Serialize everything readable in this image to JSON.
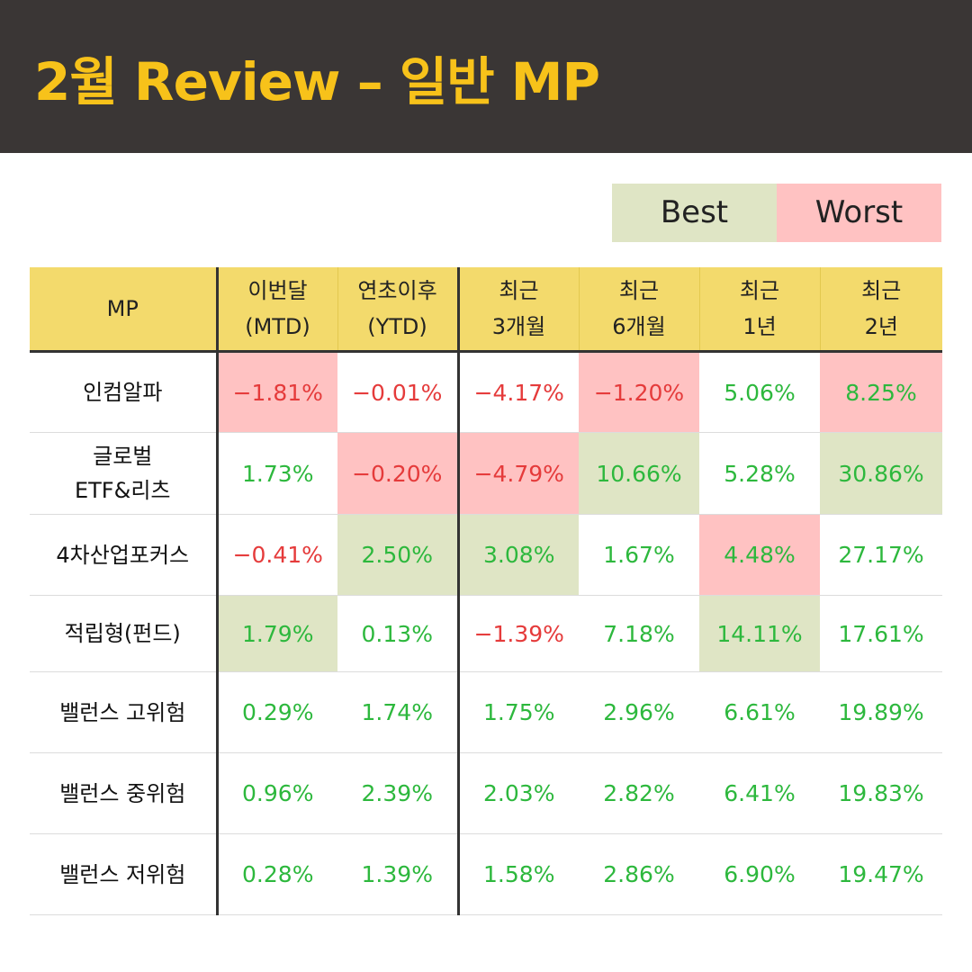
{
  "title": "2월 Review – 일반 MP",
  "legend": {
    "best": "Best",
    "worst": "Worst"
  },
  "colors": {
    "header_bg": "#3a3635",
    "title": "#f7c21a",
    "header_row": "#f3da6c",
    "best": "#dfe5c5",
    "worst": "#ffc2c2",
    "positive": "#2db83d",
    "negative": "#e53b3b"
  },
  "columns": [
    {
      "line1": "MP",
      "line2": ""
    },
    {
      "line1": "이번달",
      "line2": "(MTD)"
    },
    {
      "line1": "연초이후",
      "line2": "(YTD)"
    },
    {
      "line1": "최근",
      "line2": "3개월"
    },
    {
      "line1": "최근",
      "line2": "6개월"
    },
    {
      "line1": "최근",
      "line2": "1년"
    },
    {
      "line1": "최근",
      "line2": "2년"
    }
  ],
  "rows": [
    {
      "name": [
        "인컴알파"
      ],
      "height": "",
      "cells": [
        {
          "value": "-1.81%",
          "sign": "neg",
          "highlight": "worst"
        },
        {
          "value": "-0.01%",
          "sign": "neg",
          "highlight": ""
        },
        {
          "value": "-4.17%",
          "sign": "neg",
          "highlight": ""
        },
        {
          "value": "-1.20%",
          "sign": "neg",
          "highlight": "worst"
        },
        {
          "value": "5.06%",
          "sign": "pos",
          "highlight": ""
        },
        {
          "value": "8.25%",
          "sign": "pos",
          "highlight": "worst"
        }
      ]
    },
    {
      "name": [
        "글로벌",
        "ETF&리츠"
      ],
      "cells": [
        {
          "value": "1.73%",
          "sign": "pos",
          "highlight": ""
        },
        {
          "value": "-0.20%",
          "sign": "neg",
          "highlight": "worst"
        },
        {
          "value": "-4.79%",
          "sign": "neg",
          "highlight": "worst"
        },
        {
          "value": "10.66%",
          "sign": "pos",
          "highlight": "best"
        },
        {
          "value": "5.28%",
          "sign": "pos",
          "highlight": ""
        },
        {
          "value": "30.86%",
          "sign": "pos",
          "highlight": "best"
        }
      ]
    },
    {
      "name": [
        "4차산업포커스"
      ],
      "cells": [
        {
          "value": "-0.41%",
          "sign": "neg",
          "highlight": ""
        },
        {
          "value": "2.50%",
          "sign": "pos",
          "highlight": "best"
        },
        {
          "value": "3.08%",
          "sign": "pos",
          "highlight": "best"
        },
        {
          "value": "1.67%",
          "sign": "pos",
          "highlight": ""
        },
        {
          "value": "4.48%",
          "sign": "pos",
          "highlight": "worst"
        },
        {
          "value": "27.17%",
          "sign": "pos",
          "highlight": ""
        }
      ]
    },
    {
      "name": [
        "적립형(펀드)"
      ],
      "cells": [
        {
          "value": "1.79%",
          "sign": "pos",
          "highlight": "best"
        },
        {
          "value": "0.13%",
          "sign": "pos",
          "highlight": ""
        },
        {
          "value": "-1.39%",
          "sign": "neg",
          "highlight": ""
        },
        {
          "value": "7.18%",
          "sign": "pos",
          "highlight": ""
        },
        {
          "value": "14.11%",
          "sign": "pos",
          "highlight": "best"
        },
        {
          "value": "17.61%",
          "sign": "pos",
          "highlight": ""
        }
      ]
    },
    {
      "name": [
        "밸런스 고위험"
      ],
      "cells": [
        {
          "value": "0.29%",
          "sign": "pos",
          "highlight": ""
        },
        {
          "value": "1.74%",
          "sign": "pos",
          "highlight": ""
        },
        {
          "value": "1.75%",
          "sign": "pos",
          "highlight": ""
        },
        {
          "value": "2.96%",
          "sign": "pos",
          "highlight": ""
        },
        {
          "value": "6.61%",
          "sign": "pos",
          "highlight": ""
        },
        {
          "value": "19.89%",
          "sign": "pos",
          "highlight": ""
        }
      ]
    },
    {
      "name": [
        "밸런스 중위험"
      ],
      "cells": [
        {
          "value": "0.96%",
          "sign": "pos",
          "highlight": ""
        },
        {
          "value": "2.39%",
          "sign": "pos",
          "highlight": ""
        },
        {
          "value": "2.03%",
          "sign": "pos",
          "highlight": ""
        },
        {
          "value": "2.82%",
          "sign": "pos",
          "highlight": ""
        },
        {
          "value": "6.41%",
          "sign": "pos",
          "highlight": ""
        },
        {
          "value": "19.83%",
          "sign": "pos",
          "highlight": ""
        }
      ]
    },
    {
      "name": [
        "밸런스 저위험"
      ],
      "cells": [
        {
          "value": "0.28%",
          "sign": "pos",
          "highlight": ""
        },
        {
          "value": "1.39%",
          "sign": "pos",
          "highlight": ""
        },
        {
          "value": "1.58%",
          "sign": "pos",
          "highlight": ""
        },
        {
          "value": "2.86%",
          "sign": "pos",
          "highlight": ""
        },
        {
          "value": "6.90%",
          "sign": "pos",
          "highlight": ""
        },
        {
          "value": "19.47%",
          "sign": "pos",
          "highlight": ""
        }
      ]
    }
  ]
}
